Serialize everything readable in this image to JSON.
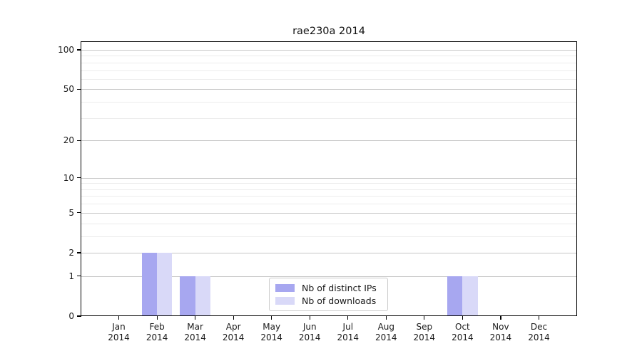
{
  "title": "rae230a 2014",
  "chart_data": {
    "type": "bar",
    "title": "rae230a 2014",
    "categories": [
      "Jan 2014",
      "Feb 2014",
      "Mar 2014",
      "Apr 2014",
      "May 2014",
      "Jun 2014",
      "Jul 2014",
      "Aug 2014",
      "Sep 2014",
      "Oct 2014",
      "Nov 2014",
      "Dec 2014"
    ],
    "x_months": [
      "Jan",
      "Feb",
      "Mar",
      "Apr",
      "May",
      "Jun",
      "Jul",
      "Aug",
      "Sep",
      "Oct",
      "Nov",
      "Dec"
    ],
    "x_year": "2014",
    "series": [
      {
        "name": "Nb of distinct IPs",
        "color": "#a7a7f0",
        "values": [
          0,
          2,
          1,
          0,
          0,
          0,
          0,
          0,
          0,
          1,
          0,
          0
        ]
      },
      {
        "name": "Nb of downloads",
        "color": "#d9d9f8",
        "values": [
          0,
          2,
          1,
          0,
          0,
          0,
          0,
          0,
          0,
          1,
          0,
          0
        ]
      }
    ],
    "y_scale": "log1p",
    "ylim": [
      0,
      116
    ],
    "y_ticks": [
      0,
      1,
      2,
      5,
      10,
      20,
      50,
      100
    ],
    "y_minor_gridlines": [
      3,
      4,
      6,
      7,
      8,
      9,
      30,
      40,
      60,
      70,
      80,
      90
    ],
    "grid": "horizontal-only",
    "legend_position": "lower-center",
    "xlabel": "",
    "ylabel": "",
    "colors": {
      "bar_dark": "#a7a7f0",
      "bar_light": "#d9d9f8",
      "grid_major": "#c7c7c7",
      "grid_minor": "#ececec",
      "axis": "#000000",
      "text": "#1a1a1a",
      "legend_border": "#cccccc"
    }
  }
}
